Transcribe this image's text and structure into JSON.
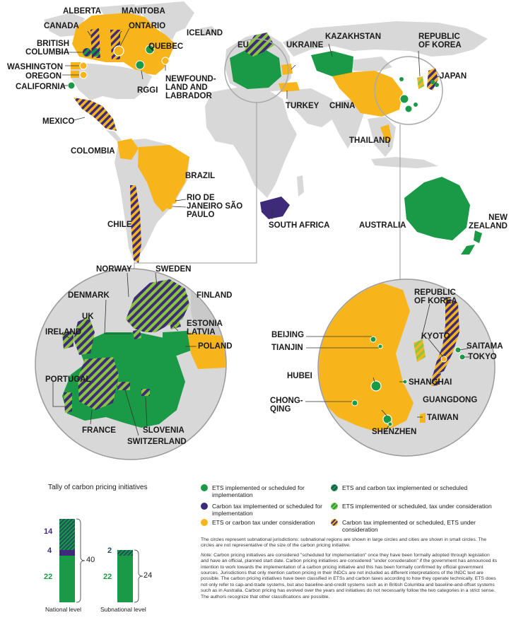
{
  "colors": {
    "ets": "#1a9a46",
    "tax": "#3d2b7a",
    "consideration": "#f7b51b",
    "land": "#d8d8d8",
    "hatch_ets_tax": "#1f6b5b",
    "hatch_ets_cons": "#8cc63f",
    "hatch_tax_ets": "#f7b51b"
  },
  "labels": {
    "alberta": "ALBERTA",
    "manitoba": "MANITOBA",
    "canada": "CANADA",
    "ontario": "ONTARIO",
    "iceland": "ICELAND",
    "british_columbia": "BRITISH COLUMBIA",
    "quebec": "QUEBEC",
    "washington": "WASHINGTON",
    "oregon": "OREGON",
    "california": "CALIFORNIA",
    "rggi": "RGGI",
    "newfoundland": "NEWFOUND-LAND AND LABRADOR",
    "mexico": "MEXICO",
    "colombia": "COLOMBIA",
    "brazil": "BRAZIL",
    "rio_sao_paulo": "RIO DE JANEIRO SÃO PAULO",
    "chile": "CHILE",
    "eu": "EU",
    "ukraine": "UKRAINE",
    "turkey": "TURKEY",
    "kazakhstan": "KAZAKHSTAN",
    "china": "CHINA",
    "republic_of_korea_top": "REPUBLIC OF KOREA",
    "japan": "JAPAN",
    "thailand": "THAILAND",
    "south_africa": "SOUTH AFRICA",
    "australia": "AUSTRALIA",
    "new_zealand": "NEW ZEALAND",
    "norway": "NORWAY",
    "sweden": "SWEDEN",
    "denmark": "DENMARK",
    "finland": "FINLAND",
    "uk": "UK",
    "estonia": "ESTONIA",
    "latvia": "LATVIA",
    "ireland": "IRELAND",
    "poland": "POLAND",
    "portugal": "PORTUGAL",
    "france": "FRANCE",
    "slovenia": "SLOVENIA",
    "switzerland": "SWITZERLAND",
    "republic_of_korea_zoom": "REPUBLIC OF KOREA",
    "beijing": "BEIJING",
    "tianjin": "TIANJIN",
    "kyoto": "KYOTO",
    "saitama": "SAITAMA",
    "tokyo": "TOKYO",
    "hubei": "HUBEI",
    "shanghai": "SHANGHAI",
    "chongqing": "CHONG-QING",
    "guangdong": "GUANGDONG",
    "taiwan": "TAIWAN",
    "shenzhen": "SHENZHEN"
  },
  "tally": {
    "title": "Tally of carbon pricing initiatives",
    "national": {
      "caption": "National level",
      "ets_tax": 14,
      "tax": 4,
      "ets": 22,
      "total": "40"
    },
    "subnational": {
      "caption": "Subnational level",
      "ets_tax": 2,
      "ets": 22,
      "total": "24"
    }
  },
  "legend": {
    "ets": "ETS implemented or scheduled for implementation",
    "tax": "Carbon tax implemented or scheduled for implementation",
    "consideration": "ETS or carbon tax under consideration",
    "ets_and_tax": "ETS and carbon tax implemented or scheduled",
    "ets_tax_cons": "ETS implemented or scheduled, tax under consideration",
    "tax_ets_cons": "Carbon tax implemented or scheduled, ETS under consideration"
  },
  "notes": {
    "circles": "The circles represent subnational jurisdictions: subnational regions are shown in large circles and cities are shown in small circles. The circles are not representative of the size of the carbon pricing initiative.",
    "note_label": "Note:",
    "note_text": "Carbon pricing initiatives are considered \"scheduled for implementation\" once they have been formally adopted through legislation and have an official, planned start date. Carbon pricing initiatives are considered \"under consideration\" if the government has announced its intention to work towards the implementation of a carbon pricing initiative and this has been formally confirmed by official government sources. Jurisdictions that only mention carbon pricing in their INDCs are not included as different interpretations of the INDC text are possible. The carbon pricing initiatives have been classified in ETSs and carbon taxes according to how they operate technically. ETS does not only refer to cap-and-trade systems, but also baseline-and-credit systems such as in British Columbia and baseline-and-offset systems such as in Australia. Carbon pricing has evolved over the years and initiatives do not necessarily follow the two categories in a strict sense. The authors recognize that other classifications are possible."
  }
}
